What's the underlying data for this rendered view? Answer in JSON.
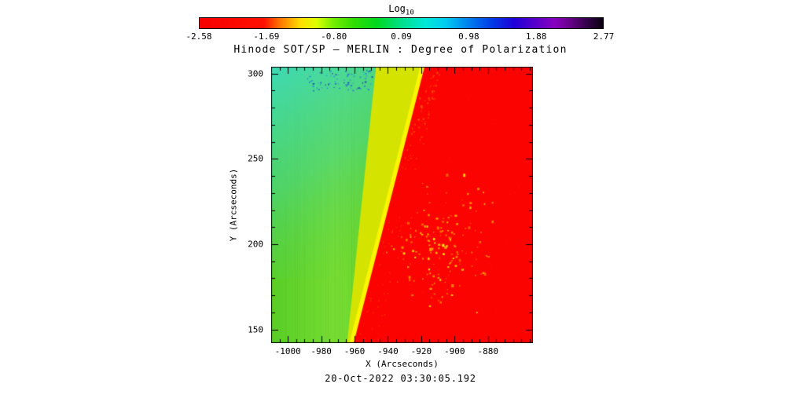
{
  "chart_data": {
    "type": "heatmap",
    "title": "Hinode SOT/SP – MERLIN : Degree of Polarization",
    "xlabel": "X (Arcseconds)",
    "ylabel": "Y (Arcseconds)",
    "timestamp": "20-Oct-2022 03:30:05.192",
    "xlim": [
      -1010,
      -853
    ],
    "ylim": [
      142,
      304
    ],
    "x_ticks": [
      -1000,
      -980,
      -960,
      -940,
      -920,
      -900,
      -880
    ],
    "y_ticks": [
      150,
      200,
      250,
      300
    ],
    "x_minor_step": 5,
    "y_minor_step": 10,
    "colorbar": {
      "label_main": "Log",
      "label_sub": "10",
      "range": [
        -2.58,
        2.77
      ],
      "tick_labels": [
        "-2.58",
        "-1.69",
        "-0.80",
        "0.09",
        "0.98",
        "1.88",
        "2.77"
      ],
      "gradient": [
        {
          "pos": 0.0,
          "color": "#f70000"
        },
        {
          "pos": 0.16,
          "color": "#ff1100"
        },
        {
          "pos": 0.2,
          "color": "#ff7700"
        },
        {
          "pos": 0.25,
          "color": "#ffdd00"
        },
        {
          "pos": 0.29,
          "color": "#ddff00"
        },
        {
          "pos": 0.33,
          "color": "#77ee00"
        },
        {
          "pos": 0.38,
          "color": "#33dd00"
        },
        {
          "pos": 0.44,
          "color": "#00d81f"
        },
        {
          "pos": 0.5,
          "color": "#00e08a"
        },
        {
          "pos": 0.56,
          "color": "#00e8d8"
        },
        {
          "pos": 0.61,
          "color": "#00ccf0"
        },
        {
          "pos": 0.66,
          "color": "#0088f0"
        },
        {
          "pos": 0.72,
          "color": "#0040e8"
        },
        {
          "pos": 0.78,
          "color": "#2000d8"
        },
        {
          "pos": 0.83,
          "color": "#5500cc"
        },
        {
          "pos": 0.88,
          "color": "#8800c0"
        },
        {
          "pos": 0.92,
          "color": "#660088"
        },
        {
          "pos": 0.96,
          "color": "#330048"
        },
        {
          "pos": 1.0,
          "color": "#0a0010"
        }
      ]
    },
    "description": "Solar limb polarization map: on-disk region (left) green near log10 DoP ~0.0-0.3, upper-left cyan patch ~0.6-0.9 with dark blue speckles at top, bright yellow limb band sloping from x~-918 at y=304 to x~-960 at y=142, off-limb region (right) saturated red ~-2.5 with scattered yellow-orange speckles concentrated near (-920, 210)",
    "regions": {
      "disk_green": "#58ce26",
      "disk_green_light": "#78dd33",
      "upper_cyan": "#3edbbe",
      "limb_yellow_inner": "#d4e400",
      "limb_yellow_bright": "#fbf500",
      "off_limb_red": "#fb0300",
      "speckle_colors": [
        "#ff8800",
        "#ffaa00",
        "#ffd400",
        "#ffee00"
      ],
      "top_speckle_colors": [
        "#1b4fd6",
        "#2a6fe0",
        "#1233a0",
        "#3aa0d8"
      ],
      "limb_red_top_frac": 0.586,
      "limb_red_bottom_frac": 0.315,
      "limb_yellow_top_frac": 0.4,
      "limb_yellow_bottom_frac": 0.29,
      "speckle_cluster": {
        "cx": 0.645,
        "cy": 0.64,
        "sx": 0.115,
        "sy": 0.16,
        "count": 170
      },
      "top_blue_zone": {
        "x0": 0.13,
        "x1": 0.46,
        "y0": 0.012,
        "y1": 0.085,
        "count": 90
      }
    }
  }
}
